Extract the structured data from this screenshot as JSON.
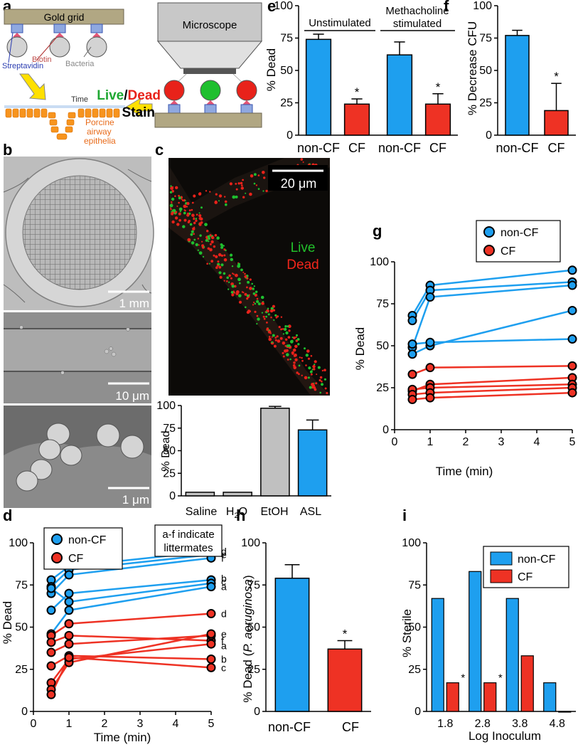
{
  "panels": {
    "a": "a",
    "b": "b",
    "c": "c",
    "d": "d",
    "e": "e",
    "f": "f",
    "g": "g",
    "h": "h",
    "i": "i"
  },
  "colors": {
    "blue": "#1e9fef",
    "red": "#ee3224",
    "gray": "#c0c0c0",
    "light_blue": "#4aa0e0",
    "dead_red": "#e8221a",
    "live_green": "#1fbf2f"
  },
  "schematic": {
    "gold_grid": "Gold grid",
    "biotin": "Biotin",
    "streptavidin": "Streptavidin",
    "bacteria": "Bacteria",
    "time": "Time",
    "porcine1": "Porcine",
    "porcine2": "airway",
    "porcine3": "epithelia",
    "microscope": "Microscope",
    "live": "Live",
    "slash": "/",
    "dead": "Dead",
    "stain": "Stain"
  },
  "micrographs": {
    "scale_1mm": "1 mm",
    "scale_10um": "10 μm",
    "scale_1um": "1 μm",
    "scale_20um": "20 μm",
    "live": "Live",
    "dead": "Dead"
  },
  "chart_data": [
    {
      "id": "c",
      "type": "bar",
      "categories": [
        "Saline",
        "H2O",
        "EtOH",
        "ASL"
      ],
      "category_labels": [
        "Saline",
        "H",
        "2",
        "O",
        "EtOH",
        "ASL"
      ],
      "values": [
        4,
        4,
        97,
        73
      ],
      "errors": [
        0,
        0,
        2,
        11
      ],
      "bar_colors": [
        "gray",
        "gray",
        "gray",
        "blue"
      ],
      "ylabel": "% Dead",
      "ylim": [
        0,
        100
      ],
      "yticks": [
        "0",
        "25",
        "50",
        "75",
        "100"
      ]
    },
    {
      "id": "d",
      "type": "line",
      "x": [
        0.5,
        1,
        5
      ],
      "xlabel": "Time (min)",
      "ylabel": "% Dead",
      "xlim": [
        0,
        5
      ],
      "ylim": [
        0,
        100
      ],
      "xticks": [
        "0",
        "1",
        "2",
        "3",
        "4",
        "5"
      ],
      "yticks": [
        "0",
        "25",
        "50",
        "75",
        "100"
      ],
      "legend": {
        "non_cf": "non-CF",
        "cf": "CF",
        "placement": "top-left"
      },
      "annotation": [
        "a-f indicate",
        "littermates"
      ],
      "series": [
        {
          "group": "non-CF",
          "values": [
            78,
            86,
            95
          ]
        },
        {
          "group": "non-CF",
          "values": [
            74,
            84,
            93
          ]
        },
        {
          "group": "non-CF",
          "values": [
            70,
            81,
            91
          ]
        },
        {
          "group": "non-CF",
          "values": [
            60,
            70,
            78
          ]
        },
        {
          "group": "non-CF",
          "values": [
            73,
            65,
            76
          ]
        },
        {
          "group": "non-CF",
          "values": [
            46,
            60,
            74
          ]
        },
        {
          "group": "CF",
          "values": [
            45,
            52,
            58
          ]
        },
        {
          "group": "CF",
          "values": [
            41,
            45,
            42
          ]
        },
        {
          "group": "CF",
          "values": [
            35,
            40,
            45
          ]
        },
        {
          "group": "CF",
          "values": [
            17,
            31,
            40
          ]
        },
        {
          "group": "CF",
          "values": [
            27,
            33,
            31
          ]
        },
        {
          "group": "CF",
          "values": [
            13,
            29,
            46
          ]
        },
        {
          "group": "CF",
          "values": [
            10,
            32,
            26
          ]
        }
      ],
      "end_labels": [
        {
          "text": "d",
          "y": 95
        },
        {
          "text": "e",
          "y": 93
        },
        {
          "text": "f",
          "y": 91
        },
        {
          "text": "b",
          "y": 79
        },
        {
          "text": "c",
          "y": 77
        },
        {
          "text": "a",
          "y": 74
        },
        {
          "text": "d",
          "y": 58
        },
        {
          "text": "e",
          "y": 46
        },
        {
          "text": "f",
          "y": 42
        },
        {
          "text": "a",
          "y": 39
        },
        {
          "text": "b",
          "y": 31
        },
        {
          "text": "c",
          "y": 26
        }
      ]
    },
    {
      "id": "e",
      "type": "bar",
      "categories": [
        "non-CF",
        "CF",
        "non-CF",
        "CF"
      ],
      "values": [
        74,
        24,
        62,
        24
      ],
      "errors": [
        4,
        4,
        10,
        8
      ],
      "bar_colors": [
        "blue",
        "red",
        "blue",
        "red"
      ],
      "groups": [
        "Unstimulated",
        [
          "Methacholine",
          "stimulated"
        ]
      ],
      "significance": [
        "",
        "*",
        "",
        "*"
      ],
      "ylabel": "% Dead",
      "ylim": [
        0,
        100
      ],
      "yticks": [
        "0",
        "25",
        "50",
        "75",
        "100"
      ]
    },
    {
      "id": "f",
      "type": "bar",
      "categories": [
        "non-CF",
        "CF"
      ],
      "values": [
        77,
        19
      ],
      "errors": [
        4,
        21
      ],
      "bar_colors": [
        "blue",
        "red"
      ],
      "significance": [
        "",
        "*"
      ],
      "ylabel": "% Decrease CFU",
      "ylim": [
        0,
        100
      ],
      "yticks": [
        "0",
        "25",
        "50",
        "75",
        "100"
      ]
    },
    {
      "id": "g",
      "type": "line",
      "x": [
        0.5,
        1,
        5
      ],
      "xlabel": "Time (min)",
      "ylabel": "% Dead",
      "xlim": [
        0,
        5
      ],
      "ylim": [
        0,
        100
      ],
      "xticks": [
        "0",
        "1",
        "2",
        "3",
        "4",
        "5"
      ],
      "yticks": [
        "0",
        "25",
        "50",
        "75",
        "100"
      ],
      "legend": {
        "non_cf": "non-CF",
        "cf": "CF",
        "placement": "top-right"
      },
      "series": [
        {
          "group": "non-CF",
          "values": [
            68,
            86,
            95
          ]
        },
        {
          "group": "non-CF",
          "values": [
            65,
            83,
            88
          ]
        },
        {
          "group": "non-CF",
          "values": [
            49,
            79,
            86
          ]
        },
        {
          "group": "non-CF",
          "values": [
            45,
            50,
            71
          ]
        },
        {
          "group": "non-CF",
          "values": [
            51,
            52,
            54
          ]
        },
        {
          "group": "CF",
          "values": [
            33,
            37,
            38
          ]
        },
        {
          "group": "CF",
          "values": [
            23,
            27,
            31
          ]
        },
        {
          "group": "CF",
          "values": [
            24,
            25,
            27
          ]
        },
        {
          "group": "CF",
          "values": [
            21,
            22,
            25
          ]
        },
        {
          "group": "CF",
          "values": [
            18,
            19,
            22
          ]
        }
      ]
    },
    {
      "id": "h",
      "type": "bar",
      "categories": [
        "non-CF",
        "CF"
      ],
      "values": [
        79,
        37
      ],
      "errors": [
        8,
        5
      ],
      "bar_colors": [
        "blue",
        "red"
      ],
      "significance": [
        "",
        "*"
      ],
      "ylabel": "% Dead (P. aeruginosa)",
      "ylabel_parts": [
        "% Dead (",
        "P. aeruginosa",
        ")"
      ],
      "ylim": [
        0,
        100
      ],
      "yticks": [
        "0",
        "25",
        "50",
        "75",
        "100"
      ]
    },
    {
      "id": "i",
      "type": "bar",
      "categories": [
        "1.8",
        "2.8",
        "3.8",
        "4.8"
      ],
      "series": [
        {
          "name": "non-CF",
          "color": "blue",
          "values": [
            67,
            83,
            67,
            17
          ]
        },
        {
          "name": "CF",
          "color": "red",
          "values": [
            17,
            17,
            33,
            0
          ]
        }
      ],
      "significance_cf": [
        "*",
        "*",
        "",
        ""
      ],
      "xlabel": "Log Inoculum",
      "ylabel": "% Sterile",
      "ylim": [
        0,
        100
      ],
      "yticks": [
        "0",
        "25",
        "50",
        "75",
        "100"
      ],
      "legend_placement": "top-right"
    }
  ]
}
